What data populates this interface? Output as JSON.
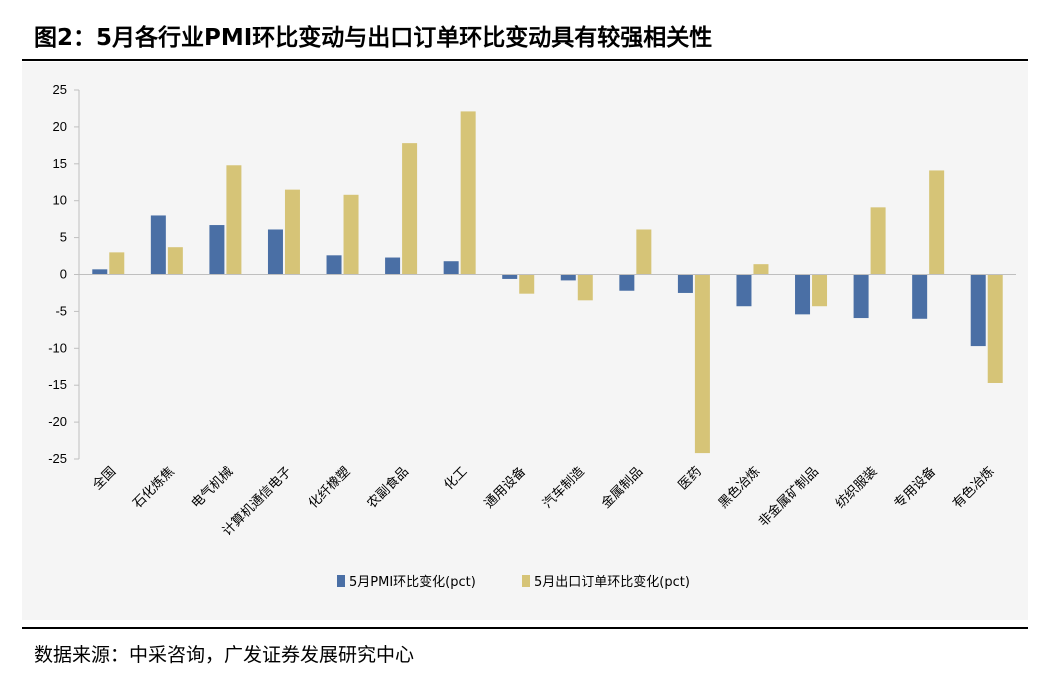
{
  "header": {
    "title": "图2：5月各行业PMI环比变动与出口订单环比变动具有较强相关性"
  },
  "footer": {
    "source": "数据来源：中采咨询，广发证券发展研究中心"
  },
  "colors": {
    "series1": "#4a6fa5",
    "series2": "#d6c477",
    "axis": "#bfbfbf",
    "background": "#f5f5f5"
  },
  "chart_data": {
    "type": "bar",
    "title": "",
    "xlabel": "",
    "ylabel": "",
    "ylim": [
      -25,
      25
    ],
    "yticks": [
      25,
      20,
      15,
      10,
      5,
      0,
      -5,
      -10,
      -15,
      -20,
      -25
    ],
    "grid": false,
    "legend_position": "bottom",
    "categories": [
      "全国",
      "石化炼焦",
      "电气机械",
      "计算机通信电子",
      "化纤橡塑",
      "农副食品",
      "化工",
      "通用设备",
      "汽车制造",
      "金属制品",
      "医药",
      "黑色冶炼",
      "非金属矿制品",
      "纺织服装",
      "专用设备",
      "有色冶炼"
    ],
    "series": [
      {
        "name": "5月PMI环比变化(pct)",
        "values": [
          0.7,
          8.0,
          6.7,
          6.1,
          2.6,
          2.3,
          1.8,
          -0.6,
          -0.8,
          -2.2,
          -2.5,
          -4.3,
          -5.4,
          -5.9,
          -6.0,
          -9.7
        ]
      },
      {
        "name": "5月出口订单环比变化(pct)",
        "values": [
          3.0,
          3.7,
          14.8,
          11.5,
          10.8,
          17.8,
          22.1,
          -2.6,
          -3.5,
          6.1,
          -24.2,
          1.4,
          -4.3,
          9.1,
          14.1,
          -14.7
        ]
      }
    ]
  }
}
